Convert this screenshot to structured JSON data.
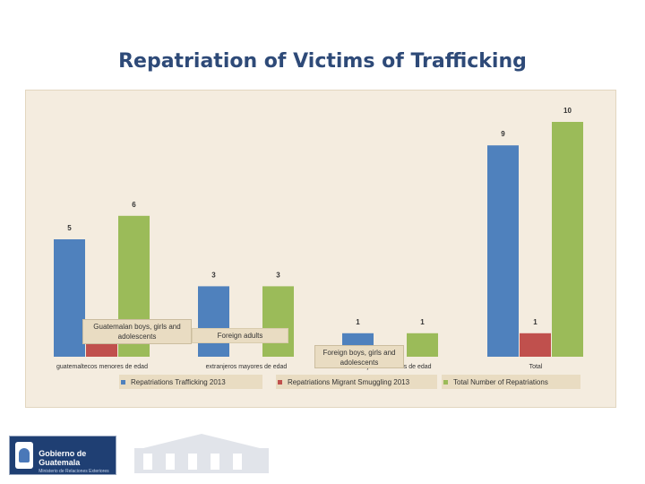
{
  "slide": {
    "title": "Repatriation of Victims of Trafficking"
  },
  "chart_data": {
    "type": "bar",
    "categories": [
      "guatemaltecos menores de edad",
      "extranjeros mayores de edad",
      "extranjeros menores de edad",
      "Total"
    ],
    "series": [
      {
        "name": "Repatriations Trafficking 2013",
        "values": [
          5,
          3,
          1,
          9
        ],
        "color": "#4f81bd"
      },
      {
        "name": "Repatriations Migrant Smuggling 2013",
        "values": [
          1,
          0,
          0,
          1
        ],
        "color": "#c0504d"
      },
      {
        "name": "Total Number of Repatriations",
        "values": [
          6,
          3,
          1,
          10
        ],
        "color": "#9bbb59"
      }
    ],
    "ylim": [
      0,
      10
    ],
    "grid": false,
    "legend_position": "bottom",
    "annotations": [
      "Guatemalan boys, girls and adolescents",
      "Foreign adults",
      "Foreign boys, girls and adolescents"
    ]
  },
  "footer": {
    "logo_title": "Gobierno de Guatemala",
    "logo_subtitle": "Ministerio de Relaciones Exteriores"
  },
  "icons": {
    "emblem": "coat-of-arms-icon",
    "watermark": "government-building-icon"
  }
}
